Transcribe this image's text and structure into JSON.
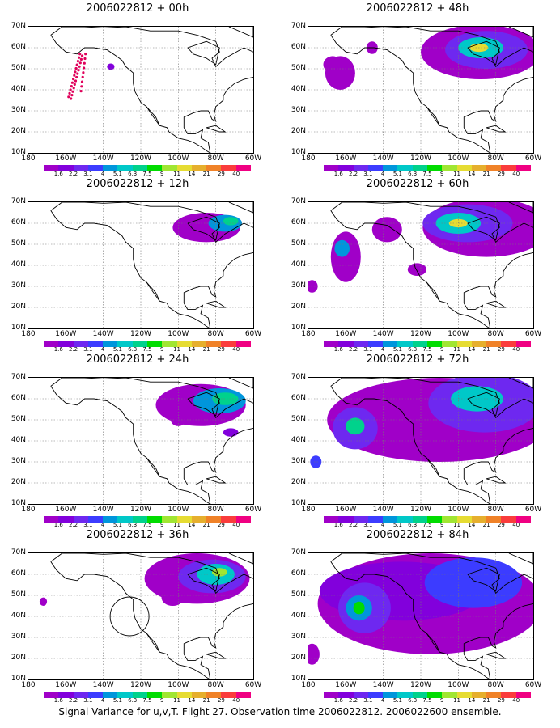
{
  "panels": [
    {
      "title": "2006022812 + 00h",
      "level": 0,
      "track": true,
      "circle": false
    },
    {
      "title": "2006022812 + 48h",
      "level": 4,
      "track": false,
      "circle": false
    },
    {
      "title": "2006022812 + 12h",
      "level": 1,
      "track": false,
      "circle": false
    },
    {
      "title": "2006022812 + 60h",
      "level": 5,
      "track": false,
      "circle": false
    },
    {
      "title": "2006022812 + 24h",
      "level": 2,
      "track": false,
      "circle": false
    },
    {
      "title": "2006022812 + 72h",
      "level": 6,
      "track": false,
      "circle": false
    },
    {
      "title": "2006022812 + 36h",
      "level": 3,
      "track": false,
      "circle": true
    },
    {
      "title": "2006022812 + 84h",
      "level": 7,
      "track": false,
      "circle": false
    }
  ],
  "lat_labels": [
    "70N",
    "60N",
    "50N",
    "40N",
    "30N",
    "20N",
    "10N"
  ],
  "lon_labels": [
    "180",
    "160W",
    "140W",
    "120W",
    "100W",
    "80W",
    "60W"
  ],
  "colorbar": {
    "labels": [
      "1.6",
      "2.2",
      "3.1",
      "4",
      "5.1",
      "6.3",
      "7.5",
      "9",
      "11",
      "14",
      "21",
      "29",
      "40"
    ],
    "colors": [
      "#a000c8",
      "#8200dc",
      "#6e28f0",
      "#3c3cff",
      "#0096dc",
      "#00c8c8",
      "#00d28c",
      "#00dc00",
      "#a0e632",
      "#e6dc32",
      "#e6af2d",
      "#f08228",
      "#fa3c3c",
      "#f00082"
    ]
  },
  "caption": "Signal Variance for u,v,T. Flight 27. Observation time 2006022812. 2006022600 ensemble."
}
